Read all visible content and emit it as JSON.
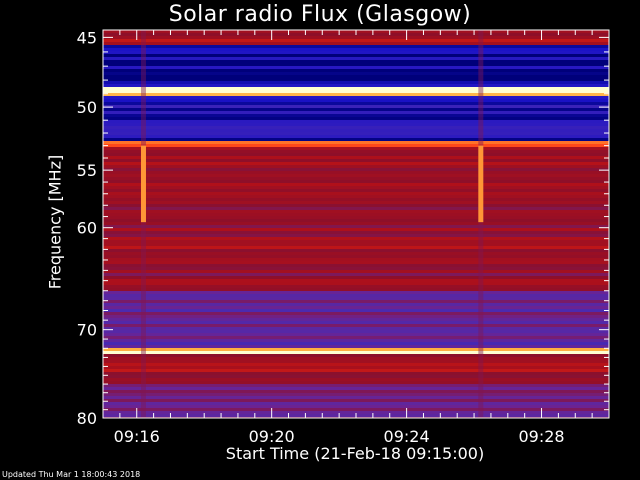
{
  "chart_data": {
    "type": "heatmap",
    "title": "Solar radio Flux (Glasgow)",
    "ylabel": "Frequency [MHz]",
    "xlabel": "Start Time (21-Feb-18 09:15:00)",
    "y_axis": {
      "range": [
        44.5,
        80
      ],
      "ticks": [
        "45",
        "50",
        "55",
        "60",
        "70",
        "80"
      ],
      "tick_values": [
        45,
        50,
        55,
        60,
        70,
        80
      ],
      "scale": "log",
      "inverted": true
    },
    "x_axis": {
      "range_minutes": [
        0,
        15
      ],
      "ticks": [
        "09:16",
        "09:20",
        "09:24",
        "09:28"
      ],
      "tick_minutes": [
        1,
        5,
        9,
        13
      ]
    },
    "colormap": [
      "#00007a",
      "#1a12c8",
      "#4b2ab0",
      "#6d2390",
      "#8c0f2a",
      "#b0101a",
      "#ff3010",
      "#ffb040",
      "#ffffd0"
    ],
    "bands": [
      {
        "from_mhz": 44.5,
        "to_mhz": 45.6,
        "level": 0.55
      },
      {
        "from_mhz": 45.6,
        "to_mhz": 48.6,
        "level": 0.05
      },
      {
        "from_mhz": 48.6,
        "to_mhz": 49.1,
        "level": 0.98
      },
      {
        "from_mhz": 49.1,
        "to_mhz": 52.6,
        "level": 0.12
      },
      {
        "from_mhz": 52.6,
        "to_mhz": 53.0,
        "level": 0.85
      },
      {
        "from_mhz": 53.0,
        "to_mhz": 66.0,
        "level": 0.55
      },
      {
        "from_mhz": 66.0,
        "to_mhz": 72.0,
        "level": 0.35
      },
      {
        "from_mhz": 72.0,
        "to_mhz": 72.5,
        "level": 0.96
      },
      {
        "from_mhz": 72.5,
        "to_mhz": 76.0,
        "level": 0.55
      },
      {
        "from_mhz": 76.0,
        "to_mhz": 80.0,
        "level": 0.35
      }
    ],
    "events": [
      {
        "time_minutes": 1.2,
        "from_mhz": 53.0,
        "to_mhz": 59.5,
        "level": 0.85
      },
      {
        "time_minutes": 11.2,
        "from_mhz": 53.0,
        "to_mhz": 59.5,
        "level": 0.85
      }
    ]
  },
  "footer": "Updated Thu Mar  1 18:00:43 2018"
}
